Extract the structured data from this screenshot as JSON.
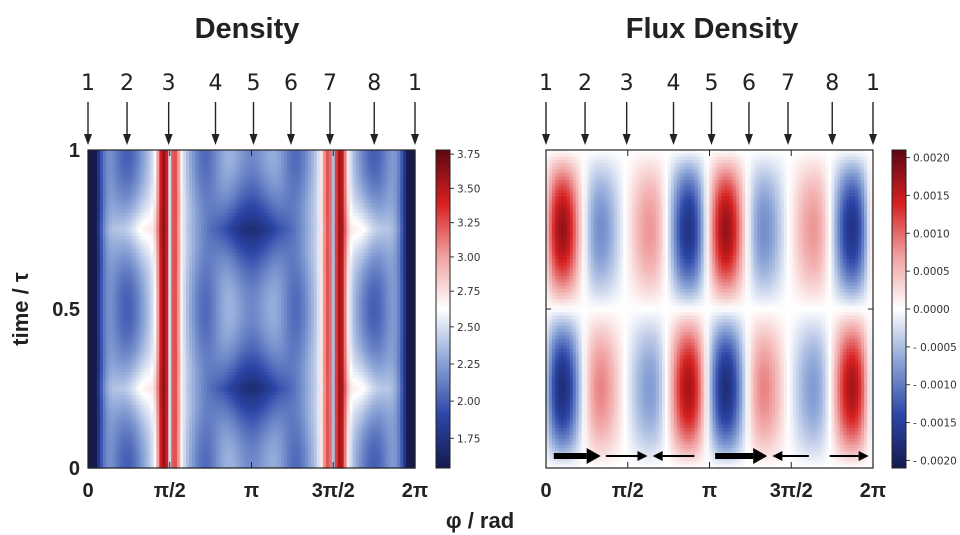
{
  "chart_data": [
    {
      "type": "heatmap",
      "title": "Density",
      "xlabel": "φ / rad",
      "ylabel": "time / τ",
      "xlim": [
        0,
        6.2832
      ],
      "ylim": [
        0,
        1
      ],
      "x_tick_labels": [
        "0",
        "π/2",
        "π",
        "3π/2",
        "2π"
      ],
      "x_tick_values": [
        0,
        1.5708,
        3.1416,
        4.7124,
        6.2832
      ],
      "y_tick_labels": [
        "0",
        "0.5",
        "1"
      ],
      "y_tick_values": [
        0,
        0.5,
        1
      ],
      "site_labels": [
        "1",
        "2",
        "3",
        "4",
        "5",
        "6",
        "7",
        "8",
        "1"
      ],
      "site_positions": [
        0,
        0.75,
        1.55,
        2.45,
        3.18,
        3.9,
        4.65,
        5.5,
        6.2832
      ],
      "colorbar": {
        "range": [
          1.55,
          3.78
        ],
        "tick_labels": [
          "3.75",
          "3.50",
          "3.25",
          "3.00",
          "2.75",
          "2.50",
          "2.25",
          "2.00",
          "1.75"
        ],
        "tick_values": [
          3.75,
          3.5,
          3.25,
          3.0,
          2.75,
          2.5,
          2.25,
          2.0,
          1.75
        ],
        "colormap": [
          "#151a4f",
          "#2c46a8",
          "#8aa3d6",
          "#ffffff",
          "#f0a0a0",
          "#d62020",
          "#5c0712"
        ],
        "center": 2.62
      }
    },
    {
      "type": "heatmap",
      "title": "Flux Density",
      "xlabel": "φ / rad",
      "xlim": [
        0,
        6.2832
      ],
      "ylim": [
        0,
        1
      ],
      "x_tick_labels": [
        "0",
        "π/2",
        "π",
        "3π/2",
        "2π"
      ],
      "x_tick_values": [
        0,
        1.5708,
        3.1416,
        4.7124,
        6.2832
      ],
      "site_labels": [
        "1",
        "2",
        "3",
        "4",
        "5",
        "6",
        "7",
        "8",
        "1"
      ],
      "site_positions": [
        0,
        0.75,
        1.55,
        2.45,
        3.18,
        3.9,
        4.65,
        5.5,
        6.2832
      ],
      "colorbar": {
        "range": [
          -0.0021,
          0.0021
        ],
        "tick_labels": [
          "0.0020",
          "0.0015",
          "0.0010",
          "0.0005",
          "0.0000",
          "- 0.0005",
          "- 0.0010",
          "- 0.0015",
          "- 0.0020"
        ],
        "tick_values": [
          0.002,
          0.0015,
          0.001,
          0.0005,
          0,
          -0.0005,
          -0.001,
          -0.0015,
          -0.002
        ],
        "colormap": [
          "#151a4f",
          "#2c46a8",
          "#8aa3d6",
          "#ffffff",
          "#f0a0a0",
          "#d62020",
          "#5c0712"
        ],
        "center": 0
      },
      "flux_arrows": [
        {
          "from": 0.15,
          "to": 1.05
        },
        {
          "from": 1.15,
          "to": 1.95
        },
        {
          "from": 2.85,
          "to": 2.05
        },
        {
          "from": 3.25,
          "to": 4.25
        },
        {
          "from": 5.05,
          "to": 4.35
        },
        {
          "from": 5.45,
          "to": 6.2
        }
      ]
    }
  ]
}
